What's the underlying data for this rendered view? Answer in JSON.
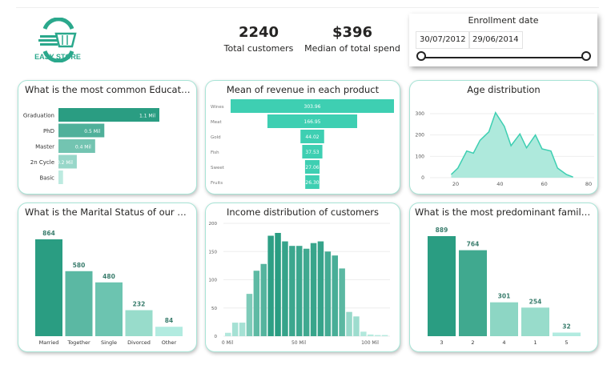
{
  "logo": {
    "text": "EASY STORE"
  },
  "kpis": [
    {
      "value": "2240",
      "label": "Total customers"
    },
    {
      "value": "$396",
      "label": "Median of total spend"
    }
  ],
  "slicer": {
    "title": "Enrollment date",
    "start": "30/07/2012",
    "end": "29/06/2014",
    "range_fraction": [
      0,
      1
    ]
  },
  "colors": {
    "dark": "#2a9d82",
    "accent": "#3ecfb2",
    "light": "#b2ebe0",
    "border": "#a8e4d6"
  },
  "chart_data": [
    {
      "id": "education",
      "type": "bar",
      "orientation": "horizontal",
      "title": "What is the most common Education level?",
      "categories": [
        "Graduation",
        "PhD",
        "Master",
        "2n Cycle",
        "Basic"
      ],
      "values": [
        1.1,
        0.5,
        0.4,
        0.2,
        0.05
      ],
      "data_labels": [
        "1.1 Mil",
        "0.5 Mil",
        "0.4 Mil",
        "0.2 Mil",
        ""
      ]
    },
    {
      "id": "revenue",
      "type": "bar",
      "orientation": "funnel",
      "title": "Mean of revenue in each product",
      "categories": [
        "Wines",
        "Meat",
        "Gold",
        "Fish",
        "Sweet",
        "Fruits"
      ],
      "values": [
        303.96,
        166.95,
        44.02,
        37.53,
        27.06,
        26.3
      ],
      "data_labels": [
        "303.96",
        "166.95",
        "44.02",
        "37.53",
        "27.06",
        "26.30"
      ]
    },
    {
      "id": "age",
      "type": "area",
      "title": "Age distribution",
      "x": [
        18,
        21,
        25,
        28,
        31,
        35,
        38,
        42,
        45,
        49,
        52,
        56,
        59,
        63,
        66,
        70,
        73
      ],
      "y": [
        15,
        45,
        125,
        115,
        175,
        215,
        305,
        240,
        150,
        205,
        140,
        200,
        135,
        125,
        45,
        15,
        3
      ],
      "xlim": [
        10,
        80
      ],
      "ylim": [
        0,
        300
      ],
      "xticks": [
        "20",
        "40",
        "60",
        "80"
      ],
      "yticks": [
        "0",
        "100",
        "200",
        "300"
      ],
      "grid": true
    },
    {
      "id": "marital",
      "type": "bar",
      "title": "What is the Marital Status of our custome...",
      "categories": [
        "Married",
        "Together",
        "Single",
        "Divorced",
        "Other"
      ],
      "values": [
        864,
        580,
        480,
        232,
        84
      ]
    },
    {
      "id": "income",
      "type": "bar",
      "title": "Income distribution of customers",
      "bin_width_mil": 5,
      "x": [
        0,
        5,
        10,
        15,
        20,
        25,
        30,
        35,
        40,
        45,
        50,
        55,
        60,
        65,
        70,
        75,
        80,
        85,
        90,
        95,
        100,
        105,
        110
      ],
      "values": [
        6,
        24,
        24,
        75,
        116,
        128,
        178,
        183,
        168,
        160,
        160,
        155,
        165,
        168,
        150,
        143,
        120,
        43,
        35,
        8,
        3,
        2,
        2
      ],
      "xticks": [
        "0 Mil",
        "50 Mil",
        "100 Mil"
      ],
      "yticks": [
        "0",
        "50",
        "100",
        "150",
        "200"
      ],
      "ylim": [
        0,
        200
      ],
      "grid": true
    },
    {
      "id": "family",
      "type": "bar",
      "title": "What is the most predominant family size?",
      "categories": [
        "3",
        "2",
        "4",
        "1",
        "5"
      ],
      "values": [
        889,
        764,
        301,
        254,
        32
      ]
    }
  ]
}
